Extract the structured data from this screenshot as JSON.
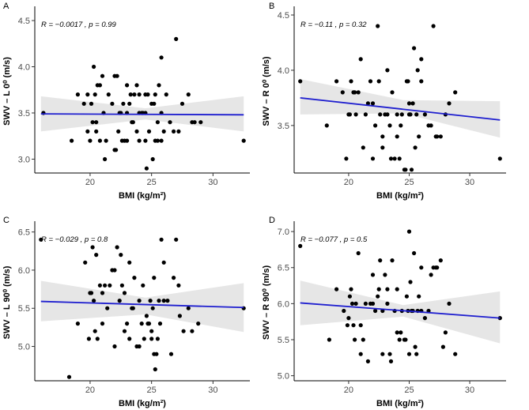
{
  "chart_data": [
    {
      "type": "scatter",
      "panel": "A",
      "annotation": "R = −0.0017 , p = 0.99",
      "xlabel": "BMI (kg/m²)",
      "ylabel": "SWV – L 0⁰ (m/s)",
      "xlim": [
        15.5,
        33
      ],
      "ylim": [
        2.85,
        4.62
      ],
      "xticks": [
        "20",
        "25",
        "30"
      ],
      "yticks": [
        "3.0",
        "3.5",
        "4.0",
        "4.5"
      ],
      "xtick_values": [
        20,
        25,
        30
      ],
      "ytick_values": [
        3.0,
        3.5,
        4.0,
        4.5
      ],
      "regression": {
        "x": [
          16,
          32.5
        ],
        "y": [
          3.49,
          3.48
        ]
      },
      "band": {
        "x": [
          16,
          24.5,
          32.5
        ],
        "lower": [
          3.3,
          3.43,
          3.3
        ],
        "upper": [
          3.68,
          3.55,
          3.68
        ]
      },
      "x": [
        16.2,
        18.5,
        19.0,
        19.5,
        19.8,
        20.0,
        20.2,
        20.4,
        20.6,
        20.8,
        21.0,
        21.2,
        19.8,
        20.1,
        20.5,
        20.3,
        20.8,
        21.1,
        20.5,
        21.3,
        21.8,
        22.0,
        22.2,
        22.4,
        22.6,
        21.5,
        22.8,
        23.0,
        23.2,
        23.4,
        23.6,
        22.0,
        22.3,
        22.7,
        22.1,
        22.5,
        23.0,
        23.3,
        23.5,
        23.8,
        24.0,
        24.2,
        24.5,
        24.8,
        25.0,
        25.3,
        25.6,
        25.8,
        24.3,
        24.7,
        25.1,
        25.5,
        25.8,
        24.0,
        24.6,
        25.2,
        25.8,
        26.0,
        26.5,
        27.0,
        27.5,
        28.0,
        28.5,
        29.0,
        26.2,
        26.8,
        25.3,
        24.5,
        25.5,
        27.2,
        28.3,
        32.5,
        23.0,
        24.0,
        23.8,
        24.5
      ],
      "y": [
        3.5,
        3.2,
        3.7,
        3.6,
        3.3,
        3.2,
        3.4,
        3.7,
        3.8,
        3.2,
        3.9,
        3.0,
        3.7,
        3.6,
        3.4,
        4.0,
        3.8,
        3.5,
        3.3,
        3.2,
        3.6,
        3.1,
        3.9,
        3.5,
        3.2,
        3.7,
        3.2,
        3.8,
        3.6,
        3.4,
        3.7,
        3.9,
        3.3,
        3.6,
        3.1,
        3.5,
        3.2,
        3.7,
        3.4,
        3.8,
        3.2,
        3.5,
        3.7,
        3.3,
        3.6,
        3.2,
        3.8,
        4.1,
        3.5,
        3.7,
        3.0,
        3.4,
        3.2,
        3.5,
        2.9,
        3.6,
        3.5,
        3.3,
        3.4,
        4.3,
        3.6,
        3.7,
        3.4,
        3.4,
        3.7,
        3.3,
        3.7,
        3.5,
        3.2,
        3.3,
        3.4,
        3.2,
        3.5,
        3.7,
        3.3,
        3.2
      ]
    },
    {
      "type": "scatter",
      "panel": "B",
      "annotation": "R = −0.11 , p = 0.32",
      "xlabel": "BMI (kg/m²)",
      "ylabel": "SWV – R 0⁰ (m/s)",
      "xlim": [
        15.5,
        33
      ],
      "ylim": [
        3.07,
        4.55
      ],
      "xticks": [
        "20",
        "25",
        "30"
      ],
      "yticks": [
        "3.5",
        "4.0",
        "4.5"
      ],
      "xtick_values": [
        20,
        25,
        30
      ],
      "ytick_values": [
        3.5,
        4.0,
        4.5
      ],
      "regression": {
        "x": [
          16,
          32.5
        ],
        "y": [
          3.75,
          3.55
        ]
      },
      "band": {
        "x": [
          16,
          24.5,
          32.5
        ],
        "lower": [
          3.6,
          3.61,
          3.39
        ],
        "upper": [
          3.92,
          3.73,
          3.72
        ]
      },
      "x": [
        16.0,
        18.2,
        19.0,
        19.5,
        19.8,
        20.0,
        20.2,
        20.4,
        20.6,
        20.8,
        21.0,
        21.2,
        20.1,
        20.5,
        21.4,
        21.6,
        22.0,
        22.2,
        22.4,
        22.6,
        22.8,
        21.8,
        23.0,
        23.2,
        23.4,
        23.6,
        23.8,
        22.5,
        22.8,
        23.2,
        24.0,
        24.2,
        24.4,
        24.6,
        24.8,
        25.0,
        25.2,
        25.4,
        25.6,
        25.8,
        26.0,
        24.3,
        24.7,
        25.1,
        25.5,
        24.9,
        25.3,
        26.0,
        26.3,
        26.6,
        27.0,
        27.3,
        27.6,
        28.0,
        28.3,
        28.8,
        26.8,
        27.2,
        25.0,
        32.5,
        22.0,
        23.5,
        24.0,
        25.7
      ],
      "y": [
        3.9,
        3.5,
        3.9,
        3.8,
        3.2,
        3.6,
        3.9,
        3.8,
        3.6,
        3.8,
        4.1,
        3.3,
        3.6,
        3.8,
        3.6,
        3.7,
        3.2,
        3.5,
        4.4,
        3.6,
        3.3,
        3.9,
        3.6,
        4.0,
        3.5,
        3.8,
        3.2,
        3.9,
        3.4,
        3.6,
        3.4,
        3.2,
        3.6,
        3.1,
        3.9,
        3.7,
        3.1,
        4.2,
        3.6,
        3.4,
        3.9,
        3.5,
        3.1,
        3.6,
        3.3,
        3.9,
        3.7,
        4.1,
        3.6,
        3.5,
        4.4,
        3.4,
        3.4,
        3.6,
        3.7,
        3.8,
        3.5,
        3.4,
        3.6,
        3.2,
        3.7,
        3.2,
        3.6,
        4.0
      ],
      "watermark": null
    },
    {
      "type": "scatter",
      "panel": "C",
      "annotation": "R = −0.029 , p = 0.8",
      "xlabel": "BMI (kg/m²)",
      "ylabel": "SWV – L 90⁰ (m/s)",
      "xlim": [
        15.5,
        33
      ],
      "ylim": [
        4.55,
        6.6
      ],
      "xticks": [
        "20",
        "25",
        "30"
      ],
      "yticks": [
        "5.0",
        "5.5",
        "6.0",
        "6.5"
      ],
      "xtick_values": [
        20,
        25,
        30
      ],
      "ytick_values": [
        5.0,
        5.5,
        6.0,
        6.5
      ],
      "regression": {
        "x": [
          16,
          32.5
        ],
        "y": [
          5.59,
          5.51
        ]
      },
      "band": {
        "x": [
          16,
          24.5,
          32.5
        ],
        "lower": [
          5.33,
          5.42,
          5.19
        ],
        "upper": [
          5.86,
          5.64,
          5.83
        ]
      },
      "x": [
        16.0,
        18.3,
        19.0,
        19.6,
        20.0,
        20.2,
        20.4,
        20.6,
        20.8,
        21.0,
        21.2,
        20.1,
        20.5,
        19.9,
        21.4,
        21.6,
        22.0,
        22.2,
        22.4,
        22.6,
        22.8,
        21.8,
        23.0,
        23.2,
        23.4,
        23.6,
        23.8,
        22.5,
        22.8,
        23.2,
        24.0,
        24.2,
        24.4,
        24.6,
        24.8,
        25.0,
        25.2,
        25.4,
        25.6,
        25.8,
        26.0,
        24.3,
        24.7,
        25.1,
        25.5,
        24.9,
        25.3,
        26.0,
        26.3,
        26.6,
        27.0,
        27.3,
        27.6,
        28.0,
        28.3,
        28.8,
        26.8,
        27.2,
        25.0,
        32.5,
        22.0,
        23.5,
        24.0,
        25.7,
        21.0,
        20.3,
        25.2
      ],
      "y": [
        6.4,
        4.6,
        5.3,
        6.1,
        5.7,
        6.3,
        5.2,
        5.1,
        5.8,
        5.3,
        5.8,
        5.7,
        6.2,
        5.1,
        5.5,
        5.8,
        5.0,
        6.3,
        5.6,
        5.8,
        5.2,
        6.0,
        5.3,
        6.1,
        5.5,
        5.9,
        5.0,
        6.2,
        5.7,
        5.1,
        5.6,
        5.3,
        5.1,
        5.4,
        5.3,
        5.2,
        5.9,
        4.9,
        5.6,
        6.4,
        5.6,
        5.8,
        5.3,
        5.5,
        5.1,
        5.6,
        4.7,
        6.1,
        5.6,
        4.9,
        6.4,
        5.4,
        5.2,
        5.5,
        5.2,
        5.3,
        5.9,
        5.8,
        5.1,
        5.5,
        6.0,
        5.5,
        5.0,
        5.3,
        5.7,
        5.6,
        4.9
      ]
    },
    {
      "type": "scatter",
      "panel": "D",
      "annotation": "R = −0.077 , p = 0.5",
      "xlabel": "BMI (kg/m²)",
      "ylabel": "SWV – R 90⁰ (m/s)",
      "xlim": [
        15.5,
        33
      ],
      "ylim": [
        4.93,
        7.1
      ],
      "xticks": [
        "20",
        "25",
        "30"
      ],
      "yticks": [
        "5.0",
        "5.5",
        "6.0",
        "6.5",
        "7.0"
      ],
      "xtick_values": [
        20,
        25,
        30
      ],
      "ytick_values": [
        5.0,
        5.5,
        6.0,
        6.5,
        7.0
      ],
      "regression": {
        "x": [
          16,
          32.5
        ],
        "y": [
          6.01,
          5.8
        ]
      },
      "band": {
        "x": [
          16,
          24.5,
          32.5
        ],
        "lower": [
          5.7,
          5.82,
          5.45
        ],
        "upper": [
          6.32,
          5.98,
          6.17
        ]
      },
      "x": [
        16.0,
        18.4,
        19.0,
        19.6,
        20.0,
        20.2,
        20.4,
        20.6,
        20.8,
        21.0,
        21.2,
        20.1,
        20.5,
        19.9,
        21.4,
        21.6,
        22.0,
        22.2,
        22.4,
        22.6,
        22.8,
        21.8,
        23.0,
        23.2,
        23.4,
        23.6,
        23.8,
        22.5,
        22.8,
        23.2,
        24.0,
        24.2,
        24.4,
        24.6,
        24.8,
        25.0,
        25.2,
        25.4,
        25.6,
        25.8,
        26.0,
        24.3,
        24.7,
        25.1,
        25.5,
        24.9,
        25.3,
        26.0,
        26.3,
        26.6,
        27.0,
        27.3,
        27.6,
        28.0,
        28.3,
        28.8,
        26.8,
        27.2,
        25.0,
        32.5,
        22.0,
        23.5,
        24.0,
        25.7,
        21.0,
        20.3,
        27.8
      ],
      "y": [
        6.8,
        5.5,
        6.2,
        5.9,
        5.8,
        6.2,
        5.7,
        6.0,
        6.7,
        5.3,
        5.5,
        6.1,
        5.5,
        5.7,
        6.0,
        5.2,
        6.4,
        5.9,
        6.1,
        6.6,
        5.3,
        6.0,
        6.4,
        6.2,
        5.3,
        6.6,
        5.9,
        6.2,
        5.9,
        6.0,
        6.2,
        5.5,
        5.9,
        5.5,
        6.1,
        5.3,
        5.9,
        6.7,
        5.3,
        6.1,
        5.9,
        5.6,
        5.5,
        6.3,
        5.4,
        5.9,
        5.9,
        6.5,
        5.8,
        5.9,
        6.5,
        6.5,
        6.6,
        5.6,
        6.0,
        5.3,
        6.4,
        6.5,
        7.0,
        5.8,
        6.0,
        5.2,
        5.6,
        5.9,
        5.7,
        6.0,
        5.4
      ]
    }
  ]
}
